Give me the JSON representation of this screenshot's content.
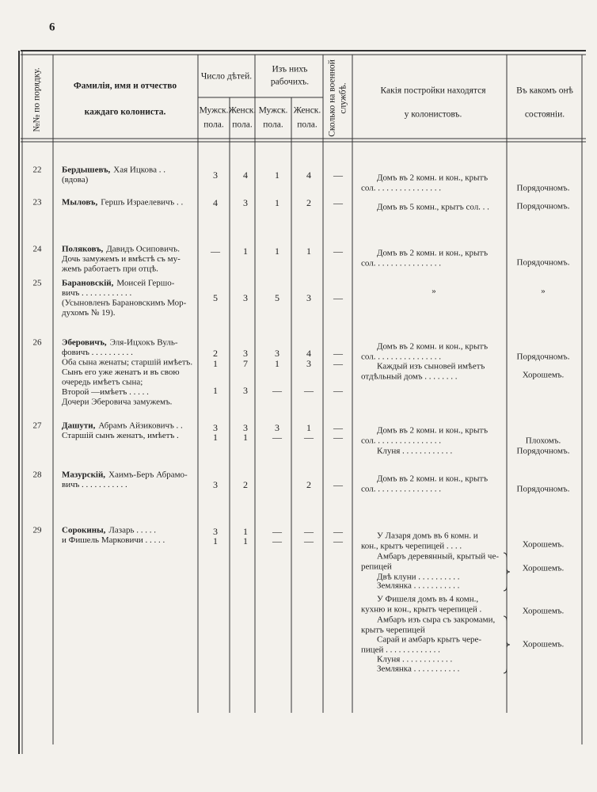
{
  "page_number": "6",
  "header": {
    "number": "№№ по порядку.",
    "name": [
      "Фамилія, имя и отчество",
      "каждаго колониста."
    ],
    "children": "Число дѣтей.",
    "workers": [
      "Изъ нихъ",
      "рабочихъ."
    ],
    "children_male": [
      "Мужск.",
      "пола."
    ],
    "children_female": [
      "Женск.",
      "пола."
    ],
    "workers_male": [
      "Мужск.",
      "пола."
    ],
    "workers_female": [
      "Женск.",
      "пола."
    ],
    "military": [
      "Сколько на военной",
      "службѣ."
    ],
    "buildings": [
      "Какія постройки находятся",
      "у колонистовъ."
    ],
    "condition": [
      "Въ какомъ онѣ",
      "состояніи."
    ]
  },
  "rows": [
    {
      "number": "22",
      "surname": "Бердышевъ,",
      "name": [
        "Хая Ицкова . .",
        "(вдова)"
      ],
      "counts": [
        [
          3,
          4,
          1,
          4,
          "—"
        ]
      ],
      "buildings": [
        "Домъ въ 2 комн. и кон., крытъ",
        "сол. . . . . . . . . . . . . . . ."
      ],
      "condition": [
        "Порядочномъ."
      ]
    },
    {
      "number": "23",
      "surname": "Мыловъ,",
      "name": [
        "Гершъ Израелевичъ . ."
      ],
      "counts": [
        [
          4,
          3,
          1,
          2,
          "—"
        ]
      ],
      "buildings": [
        "Домъ въ 5 комн., крытъ сол. . ."
      ],
      "condition": [
        "Порядочномъ."
      ]
    },
    {
      "number": "24",
      "surname": "Поляковъ,",
      "name": [
        "Давидъ Осиповичъ.",
        "Дочь замужемъ и вмѣстѣ съ му-",
        "жемъ работаетъ при отцѣ."
      ],
      "counts": [
        [
          "—",
          1,
          1,
          1,
          "—"
        ]
      ],
      "buildings": [
        "Домъ въ 2 комн. и кон., крытъ",
        "сол. . . . . . . . . . . . . . . ."
      ],
      "condition": [
        "Порядочномъ."
      ]
    },
    {
      "number": "25",
      "surname": "Барановскій,",
      "name": [
        "Моисей Гершо-",
        "вичъ . . . . . . . . . . . .",
        "(Усыновленъ Барановскимъ Мор-",
        "духомъ № 19)."
      ],
      "counts": [
        [
          5,
          3,
          5,
          3,
          "—"
        ]
      ],
      "buildings": [
        "»"
      ],
      "condition": [
        "»"
      ]
    },
    {
      "number": "26",
      "surname": "Эберовичъ,",
      "name": [
        "Эля-Ицхокъ Вуль-",
        "фовичъ . . . . . . . . . .",
        "Оба сына женаты; старшій имѣетъ.",
        "Сынъ его уже женатъ и въ свою",
        "очередь имѣетъ сына;",
        "Второй —имѣетъ . . . . .",
        "Дочери Эберовича замужемъ."
      ],
      "counts": [
        [
          2,
          3,
          3,
          4,
          "—"
        ],
        [
          1,
          7,
          1,
          3,
          "—"
        ],
        [
          1,
          3,
          "—",
          "—",
          "—"
        ]
      ],
      "buildings": [
        "Домъ въ 2 комн. и кон., крытъ",
        "сол. . . . . . . . . . . . . . . .",
        "Каждый изъ сыновей имѣетъ",
        "отдѣльный домъ . . . . . . . ."
      ],
      "condition": [
        "Порядочномъ.",
        "Хорошемъ."
      ]
    },
    {
      "number": "27",
      "surname": "Дашути,",
      "name": [
        "Абрамъ Айзиковичъ . .",
        "Старшій сынъ женатъ, имѣетъ ."
      ],
      "counts": [
        [
          3,
          3,
          3,
          1,
          "—"
        ],
        [
          1,
          1,
          "—",
          "—",
          "—"
        ]
      ],
      "buildings": [
        "Домъ въ 2 комн. и кон., крытъ",
        "сол. . . . . . . . . . . . . . . .",
        "Клуня . . . . . . . . . . . ."
      ],
      "condition": [
        "Плохомъ.",
        "Порядочномъ."
      ]
    },
    {
      "number": "28",
      "surname": "Мазурскій,",
      "name": [
        "Хаимъ-Беръ Абрамо-",
        "вичъ . . . . . . . . . . ."
      ],
      "counts": [
        [
          3,
          2,
          null,
          2,
          "—"
        ]
      ],
      "buildings": [
        "Домъ въ 2 комн. и кон., крытъ",
        "сол. . . . . . . . . . . . . . . ."
      ],
      "condition": [
        "Порядочномъ."
      ]
    },
    {
      "number": "29",
      "surname": "Сорокины,",
      "name": [
        "Лазарь . . . . .",
        "и Фишель Марковичи . . . . ."
      ],
      "counts": [
        [
          3,
          1,
          "—",
          "—",
          "—"
        ],
        [
          1,
          1,
          "—",
          "—",
          "—"
        ]
      ],
      "buildings": [
        "У Лазаря домъ въ 6 комн. и",
        "кон., крытъ черепицей . . . .",
        "Амбаръ деревянный, крытый че-",
        "репицей",
        "Двѣ клуни . . . . . . . . . .",
        "Землянка . . . . . . . . . . .",
        "У Фишеля домъ въ 4 комн.,",
        "кухню и кон., крытъ черепицей .",
        "Амбаръ изъ сыра съ закромами,",
        "крытъ черепицей",
        "Сарай и амбаръ крытъ чере-",
        "пицей . . . . . . . . . . . . .",
        "Клуня . . . . . . . . . . . .",
        "Землянка . . . . . . . . . . ."
      ],
      "condition": [
        "Хорошемъ.",
        "Хорошемъ.",
        "Хорошемъ.",
        "Хорошемъ."
      ]
    }
  ]
}
